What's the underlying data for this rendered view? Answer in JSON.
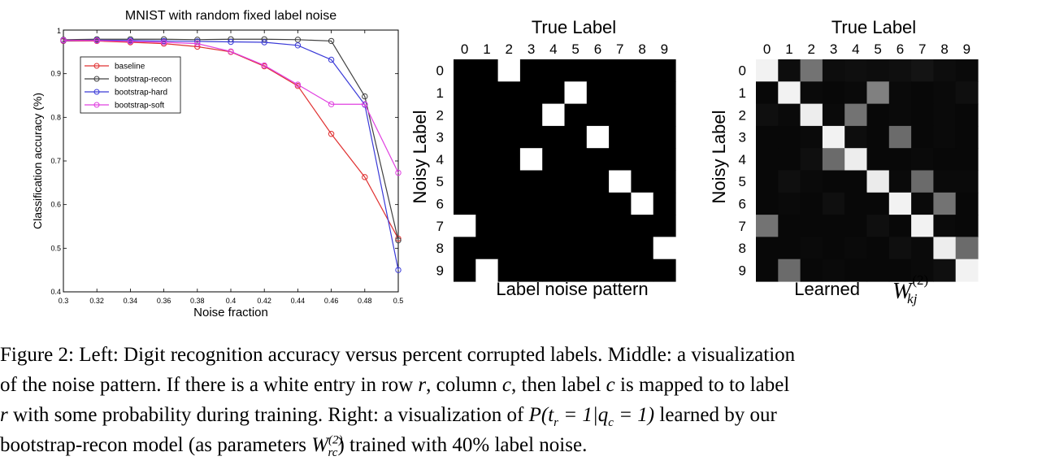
{
  "chart_data": [
    {
      "type": "line",
      "title": "MNIST with random fixed label noise",
      "xlabel": "Noise fraction",
      "ylabel": "Classification accuracy (%)",
      "xlim": [
        0.3,
        0.5
      ],
      "ylim": [
        0.4,
        1.0
      ],
      "x": [
        0.3,
        0.32,
        0.34,
        0.36,
        0.38,
        0.4,
        0.42,
        0.44,
        0.46,
        0.48,
        0.5
      ],
      "xtick_labels": [
        "0.3",
        "0.32",
        "0.34",
        "0.36",
        "0.38",
        "0.4",
        "0.42",
        "0.44",
        "0.46",
        "0.48",
        "0.5"
      ],
      "yticks": [
        0.4,
        0.5,
        0.6,
        0.7,
        0.8,
        0.9
      ],
      "ytick_labels": [
        "0.4",
        "0.5",
        "0.6",
        "0.7",
        "0.8",
        "0.9"
      ],
      "corner_tick_label": "1",
      "legend_position": "upper-left",
      "series": [
        {
          "name": "baseline",
          "color": "#e03030",
          "values": [
            0.975,
            0.975,
            0.972,
            0.969,
            0.962,
            0.95,
            0.917,
            0.872,
            0.762,
            0.663,
            0.522
          ]
        },
        {
          "name": "bootstrap-recon",
          "color": "#404040",
          "values": [
            0.978,
            0.979,
            0.979,
            0.979,
            0.978,
            0.979,
            0.979,
            0.978,
            0.975,
            0.848,
            0.518
          ]
        },
        {
          "name": "bootstrap-hard",
          "color": "#3a3ad8",
          "values": [
            0.976,
            0.977,
            0.976,
            0.975,
            0.974,
            0.973,
            0.972,
            0.965,
            0.932,
            0.829,
            0.45
          ]
        },
        {
          "name": "bootstrap-soft",
          "color": "#e040e0",
          "values": [
            0.977,
            0.976,
            0.974,
            0.972,
            0.969,
            0.951,
            0.919,
            0.875,
            0.83,
            0.83,
            0.673
          ]
        }
      ]
    },
    {
      "type": "heatmap",
      "title": "Label noise pattern",
      "xlabel": "True Label",
      "ylabel": "Noisy Label",
      "col_labels": [
        "0",
        "1",
        "2",
        "3",
        "4",
        "5",
        "6",
        "7",
        "8",
        "9"
      ],
      "row_labels": [
        "0",
        "1",
        "2",
        "3",
        "4",
        "5",
        "6",
        "7",
        "8",
        "9"
      ],
      "white_cells": [
        [
          0,
          2
        ],
        [
          1,
          5
        ],
        [
          2,
          4
        ],
        [
          3,
          6
        ],
        [
          4,
          3
        ],
        [
          5,
          7
        ],
        [
          6,
          8
        ],
        [
          7,
          0
        ],
        [
          8,
          9
        ],
        [
          9,
          1
        ]
      ]
    },
    {
      "type": "heatmap",
      "title": "Learned",
      "title_math": {
        "base": "W",
        "sup": "(2)",
        "sub": "kj"
      },
      "xlabel": "True Label",
      "ylabel": "Noisy Label",
      "col_labels": [
        "0",
        "1",
        "2",
        "3",
        "4",
        "5",
        "6",
        "7",
        "8",
        "9"
      ],
      "row_labels": [
        "0",
        "1",
        "2",
        "3",
        "4",
        "5",
        "6",
        "7",
        "8",
        "9"
      ],
      "values": [
        [
          0.95,
          0.05,
          0.45,
          0.05,
          0.06,
          0.05,
          0.06,
          0.08,
          0.05,
          0.04
        ],
        [
          0.03,
          0.95,
          0.04,
          0.03,
          0.04,
          0.5,
          0.04,
          0.03,
          0.04,
          0.06
        ],
        [
          0.06,
          0.04,
          0.93,
          0.04,
          0.45,
          0.03,
          0.04,
          0.03,
          0.04,
          0.03
        ],
        [
          0.03,
          0.03,
          0.04,
          0.95,
          0.05,
          0.03,
          0.42,
          0.03,
          0.04,
          0.03
        ],
        [
          0.03,
          0.03,
          0.06,
          0.42,
          0.93,
          0.03,
          0.03,
          0.04,
          0.03,
          0.03
        ],
        [
          0.03,
          0.06,
          0.04,
          0.03,
          0.03,
          0.92,
          0.04,
          0.42,
          0.04,
          0.04
        ],
        [
          0.03,
          0.04,
          0.03,
          0.06,
          0.03,
          0.03,
          0.95,
          0.04,
          0.45,
          0.03
        ],
        [
          0.45,
          0.03,
          0.03,
          0.03,
          0.03,
          0.06,
          0.03,
          0.95,
          0.04,
          0.03
        ],
        [
          0.03,
          0.03,
          0.04,
          0.03,
          0.04,
          0.03,
          0.06,
          0.04,
          0.93,
          0.42
        ],
        [
          0.03,
          0.42,
          0.03,
          0.04,
          0.03,
          0.03,
          0.03,
          0.04,
          0.06,
          0.95
        ]
      ]
    }
  ],
  "caption": {
    "label": "Figure 2:",
    "line1": "Left: Digit recognition accuracy versus percent corrupted labels. Middle: a visualization",
    "line2_a": "of the noise pattern. If there is a white entry in row",
    "var_r": "r",
    "line2_b": ", column",
    "var_c": "c",
    "line2_c": ", then label",
    "line2_d": "is mapped to to label",
    "line3_a": "with some probability during training. Right: a visualization of",
    "math_p": "P(t",
    "math_p_sub_r": "r",
    "math_p_mid": " = 1|q",
    "math_p_sub_c": "c",
    "math_p_end": " = 1)",
    "line3_b": "learned by our",
    "line4_a": "bootstrap-recon model (as parameters",
    "math_w": "W",
    "math_w_sup": "(2)",
    "math_w_sub": "rc",
    "line4_b": ") trained with 40% label noise."
  }
}
